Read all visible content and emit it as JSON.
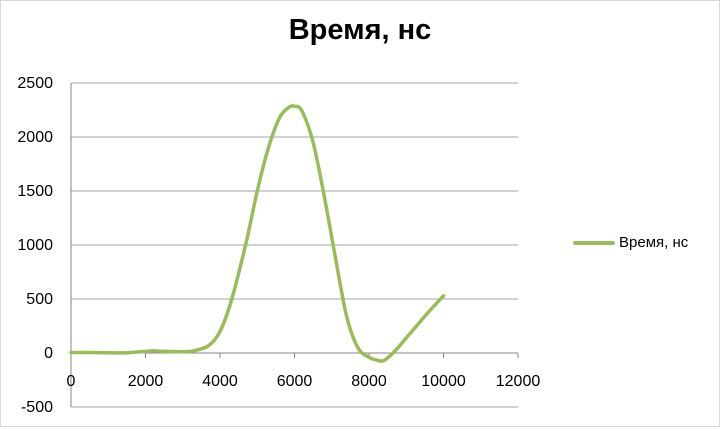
{
  "chart_data": {
    "type": "line",
    "title": "Время, нс",
    "xlabel": "",
    "ylabel": "",
    "xlim": [
      0,
      12000
    ],
    "ylim": [
      -500,
      2500
    ],
    "x_ticks": [
      0,
      2000,
      4000,
      6000,
      8000,
      10000,
      12000
    ],
    "y_ticks": [
      -500,
      0,
      500,
      1000,
      1500,
      2000,
      2500
    ],
    "grid": "horizontal",
    "legend_position": "right",
    "series": [
      {
        "name": "Время, нс",
        "color": "#9bbb59",
        "smooth": true,
        "points": [
          [
            0,
            5
          ],
          [
            500,
            5
          ],
          [
            1000,
            2
          ],
          [
            1500,
            2
          ],
          [
            2000,
            15
          ],
          [
            2200,
            20
          ],
          [
            2500,
            15
          ],
          [
            3000,
            12
          ],
          [
            3300,
            20
          ],
          [
            3700,
            70
          ],
          [
            4000,
            200
          ],
          [
            4300,
            480
          ],
          [
            4700,
            1020
          ],
          [
            5000,
            1500
          ],
          [
            5300,
            1900
          ],
          [
            5600,
            2180
          ],
          [
            5850,
            2275
          ],
          [
            6000,
            2285
          ],
          [
            6200,
            2240
          ],
          [
            6500,
            1950
          ],
          [
            6800,
            1450
          ],
          [
            7100,
            880
          ],
          [
            7400,
            340
          ],
          [
            7700,
            50
          ],
          [
            8000,
            -40
          ],
          [
            8200,
            -65
          ],
          [
            8400,
            -70
          ],
          [
            8700,
            20
          ],
          [
            9000,
            140
          ],
          [
            9300,
            260
          ],
          [
            9600,
            380
          ],
          [
            10000,
            530
          ]
        ]
      }
    ]
  }
}
